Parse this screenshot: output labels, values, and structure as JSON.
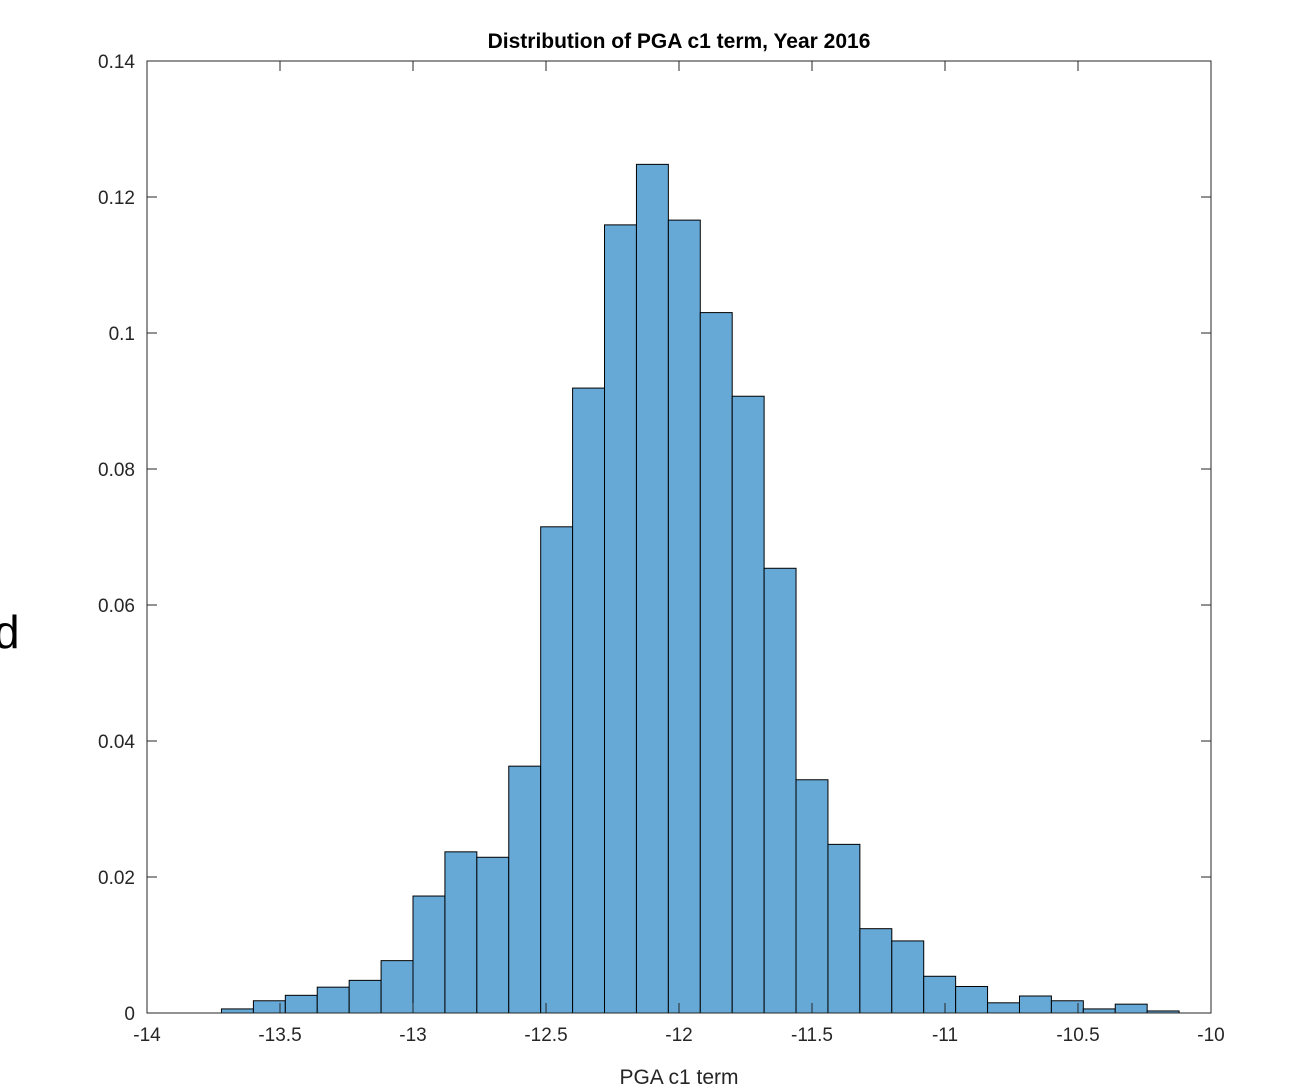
{
  "figure": {
    "clipped_top_text": "",
    "clipped_left_text": "d"
  },
  "chart_data": {
    "type": "bar",
    "title": "Distribution of PGA c1 term, Year 2016",
    "xlabel": "PGA c1 term",
    "ylabel": "",
    "xlim": [
      -14,
      -10
    ],
    "ylim": [
      0,
      0.14
    ],
    "xticks": [
      "-14",
      "-13.5",
      "-13",
      "-12.5",
      "-12",
      "-11.5",
      "-11",
      "-10.5",
      "-10"
    ],
    "xtick_values": [
      -14,
      -13.5,
      -13,
      -12.5,
      -12,
      -11.5,
      -11,
      -10.5,
      -10
    ],
    "yticks": [
      "0",
      "0.02",
      "0.04",
      "0.06",
      "0.08",
      "0.1",
      "0.12",
      "0.14"
    ],
    "ytick_values": [
      0,
      0.02,
      0.04,
      0.06,
      0.08,
      0.1,
      0.12,
      0.14
    ],
    "bin_width": 0.12,
    "bin_edges_start": -13.72,
    "values": [
      0.0006,
      0.0018,
      0.0026,
      0.0038,
      0.0048,
      0.0077,
      0.0172,
      0.0237,
      0.0229,
      0.0363,
      0.0715,
      0.0919,
      0.1159,
      0.1248,
      0.1166,
      0.103,
      0.0907,
      0.0654,
      0.0343,
      0.0248,
      0.0124,
      0.0106,
      0.0054,
      0.0039,
      0.0015,
      0.0025,
      0.0018,
      0.0006,
      0.0013,
      0.0003
    ],
    "grid": false,
    "legend": "none",
    "bar_color": "#66a9d7",
    "edge_color": "#000000"
  }
}
